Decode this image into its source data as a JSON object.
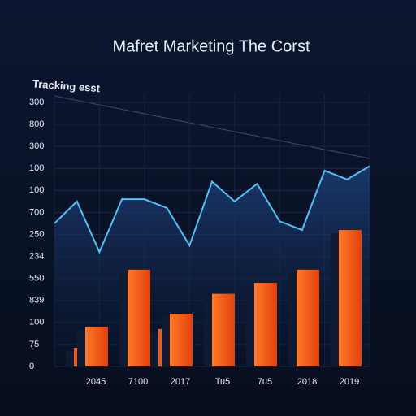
{
  "chart_data": {
    "type": "bar_line",
    "title": "Mafret Marketing The Corst",
    "subtitle": "Tracking esst",
    "y_labels": [
      "0",
      "75",
      "100",
      "839",
      "550",
      "234",
      "250",
      "700",
      "100",
      "100",
      "300",
      "800",
      "300"
    ],
    "ylim": [
      0,
      12
    ],
    "categories": [
      "2045",
      "7100",
      "2017",
      "Tu5",
      "7u5",
      "2018",
      "2019"
    ],
    "series": [
      {
        "color": "#f2561a",
        "values": [
          0.85,
          null,
          1.7,
          null,
          null,
          null,
          null
        ]
      },
      {
        "color": "#ff6a1f",
        "values": [
          1.8,
          4.4,
          2.4,
          3.3,
          3.8,
          4.4,
          6.2
        ]
      }
    ],
    "line": {
      "color": "#4fc3f7",
      "values": [
        6.5,
        7.5,
        5.2,
        7.6,
        7.6,
        7.2,
        5.5,
        8.4,
        7.5,
        8.3,
        6.6,
        6.2,
        8.9,
        8.5,
        9.1
      ]
    },
    "grid": true
  }
}
